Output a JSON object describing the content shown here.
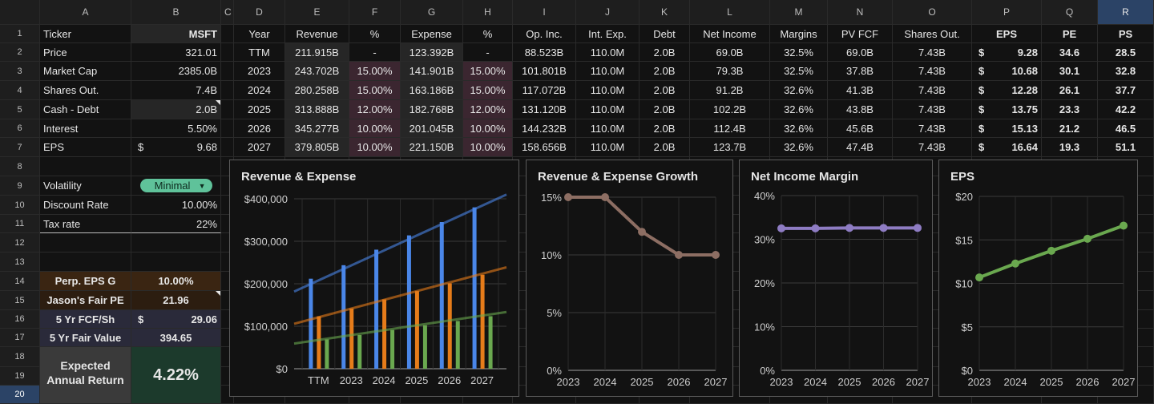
{
  "columns": [
    "A",
    "B",
    "C",
    "D",
    "E",
    "F",
    "G",
    "H",
    "I",
    "J",
    "K",
    "L",
    "M",
    "N",
    "O",
    "P",
    "Q",
    "R"
  ],
  "rows": [
    "1",
    "2",
    "3",
    "4",
    "5",
    "6",
    "7",
    "8",
    "9",
    "10",
    "11",
    "12",
    "13",
    "14",
    "15",
    "16",
    "17",
    "18",
    "19",
    "20"
  ],
  "left": {
    "ticker_label": "Ticker",
    "ticker": "MSFT",
    "price_label": "Price",
    "price": "321.01",
    "mcap_label": "Market Cap",
    "mcap": "2385.0B",
    "shares_label": "Shares Out.",
    "shares": "7.4B",
    "cashdebt_label": "Cash - Debt",
    "cashdebt": "2.0B",
    "interest_label": "Interest",
    "interest": "5.50%",
    "eps_label": "EPS",
    "eps_cur": "$",
    "eps": "9.68",
    "vol_label": "Volatility",
    "vol": "Minimal",
    "disc_label": "Discount Rate",
    "disc": "10.00%",
    "tax_label": "Tax rate",
    "tax": "22%",
    "perp_label": "Perp. EPS G",
    "perp": "10.00%",
    "jpe_label": "Jason's Fair PE",
    "jpe": "21.96",
    "fcf_label": "5 Yr FCF/Sh",
    "fcf_cur": "$",
    "fcf": "29.06",
    "fv_label": "5 Yr Fair Value",
    "fv": "394.65",
    "ear_label1": "Expected",
    "ear_label2": "Annual Return",
    "ear": "4.22%"
  },
  "table": {
    "headers": [
      "Year",
      "Revenue",
      "%",
      "Expense",
      "%",
      "Op. Inc.",
      "Int. Exp.",
      "Debt",
      "Net Income",
      "Margins",
      "PV FCF",
      "Shares Out.",
      "EPS",
      "PE",
      "PS"
    ],
    "rows": [
      [
        "TTM",
        "211.915B",
        "-",
        "123.392B",
        "-",
        "88.523B",
        "110.0M",
        "2.0B",
        "69.0B",
        "32.5%",
        "69.0B",
        "7.43B",
        "$",
        "9.28",
        "34.6",
        "28.5"
      ],
      [
        "2023",
        "243.702B",
        "15.00%",
        "141.901B",
        "15.00%",
        "101.801B",
        "110.0M",
        "2.0B",
        "79.3B",
        "32.5%",
        "37.8B",
        "7.43B",
        "$",
        "10.68",
        "30.1",
        "32.8"
      ],
      [
        "2024",
        "280.258B",
        "15.00%",
        "163.186B",
        "15.00%",
        "117.072B",
        "110.0M",
        "2.0B",
        "91.2B",
        "32.6%",
        "41.3B",
        "7.43B",
        "$",
        "12.28",
        "26.1",
        "37.7"
      ],
      [
        "2025",
        "313.888B",
        "12.00%",
        "182.768B",
        "12.00%",
        "131.120B",
        "110.0M",
        "2.0B",
        "102.2B",
        "32.6%",
        "43.8B",
        "7.43B",
        "$",
        "13.75",
        "23.3",
        "42.2"
      ],
      [
        "2026",
        "345.277B",
        "10.00%",
        "201.045B",
        "10.00%",
        "144.232B",
        "110.0M",
        "2.0B",
        "112.4B",
        "32.6%",
        "45.6B",
        "7.43B",
        "$",
        "15.13",
        "21.2",
        "46.5"
      ],
      [
        "2027",
        "379.805B",
        "10.00%",
        "221.150B",
        "10.00%",
        "158.656B",
        "110.0M",
        "2.0B",
        "123.7B",
        "32.6%",
        "47.4B",
        "7.43B",
        "$",
        "16.64",
        "19.3",
        "51.1"
      ]
    ]
  },
  "colors": {
    "revenue": "#4a86e8",
    "expense": "#e67c1a",
    "net_income": "#6aa84f",
    "growth": "#8d6e63",
    "margin": "#8e7cc3",
    "eps": "#6aa84f"
  },
  "chart_data": [
    {
      "type": "bar",
      "title": "Revenue & Expense",
      "categories": [
        "TTM",
        "2023",
        "2024",
        "2025",
        "2026",
        "2027"
      ],
      "yticks": [
        "$0",
        "$100,000",
        "$200,000",
        "$300,000",
        "$400,000"
      ],
      "ylim": [
        0,
        400000
      ],
      "series": [
        {
          "values": [
            211915,
            243702,
            280258,
            313888,
            345277,
            379805
          ]
        },
        {
          "values": [
            123392,
            141901,
            163186,
            182768,
            201045,
            221150
          ]
        },
        {
          "values": [
            69000,
            79300,
            91200,
            102200,
            112400,
            123700
          ]
        }
      ],
      "trendlines": true,
      "grid": true
    },
    {
      "type": "line",
      "title": "Revenue & Expense Growth",
      "categories": [
        "2023",
        "2024",
        "2025",
        "2026",
        "2027"
      ],
      "yticks": [
        "0%",
        "5%",
        "10%",
        "15%"
      ],
      "ylim": [
        0,
        15
      ],
      "series": [
        {
          "values": [
            15,
            15,
            12,
            10,
            10
          ]
        }
      ],
      "grid": true
    },
    {
      "type": "line",
      "title": "Net Income Margin",
      "categories": [
        "2023",
        "2024",
        "2025",
        "2026",
        "2027"
      ],
      "yticks": [
        "0%",
        "10%",
        "20%",
        "30%",
        "40%"
      ],
      "ylim": [
        0,
        40
      ],
      "series": [
        {
          "values": [
            32.5,
            32.5,
            32.6,
            32.6,
            32.6
          ]
        }
      ],
      "grid": true
    },
    {
      "type": "line",
      "title": "EPS",
      "categories": [
        "2023",
        "2024",
        "2025",
        "2026",
        "2027"
      ],
      "yticks": [
        "$0",
        "$5",
        "$10",
        "$15",
        "$20"
      ],
      "ylim": [
        0,
        20
      ],
      "series": [
        {
          "values": [
            10.68,
            12.28,
            13.75,
            15.13,
            16.64
          ]
        }
      ],
      "grid": true
    }
  ]
}
